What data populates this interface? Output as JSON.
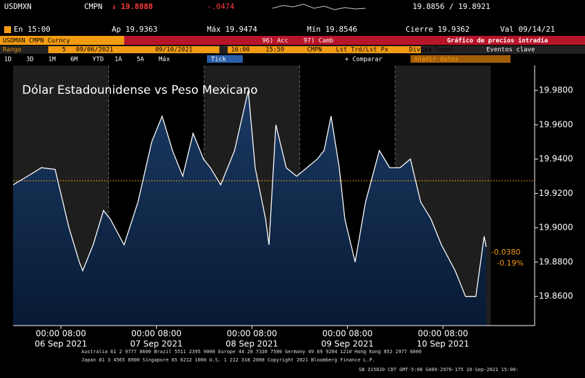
{
  "header": {
    "ticker": "USDMXN",
    "source": "CMPN",
    "last": "↓ 19.8888",
    "change": "-.0474",
    "bid_ask": "19.8856 / 19.8921",
    "time": "En 15:00",
    "open": "Ap 19.9363",
    "high": "Máx 19.9474",
    "low": "Mín 19.8546",
    "close": "Cierre 19.9362",
    "value_date": "Val 09/14/21",
    "security": "USDMXN CMPN Curncy",
    "menu_acc": "96) Acc",
    "menu_camb": "97) Camb",
    "chart_name": "Gráfico de precios intradía",
    "range_label": "Rango",
    "range_days": "5",
    "start_date": "09/06/2021",
    "end_date": "09/10/2021",
    "start_time": "16:00",
    "end_time": "15:59",
    "pricing_source": "CMPN",
    "field": "Lst Trd/Lst Px",
    "currency": "Divisa local",
    "events": "Eventos clave",
    "ranges": [
      "1D",
      "3D",
      "1M",
      "6M",
      "YTD",
      "1A",
      "5A",
      "Máx"
    ],
    "tick_button": "Tick",
    "compare": "+ Comparar",
    "add_data": "Añadir datos"
  },
  "footer": [
    "Australia 61 2 9777 8600 Brazil 5511 2395 9000 Europe 44 20 7330 7500 Germany 49 69 9204 1210 Hong Kong 852 2977 6000",
    "Japan 81 3 4565 8900      Singapore 65 6212 1000      U.S. 1 212 318 2000      Copyright 2021 Bloomberg Finance L.P.",
    "SN 315020 CDT  GMT-5:00 G409-2970-175 10-Sep-2021 15:00:"
  ],
  "chart_data": {
    "type": "area",
    "title": "Dólar Estadounidense vs Peso Mexicano",
    "x": [
      0,
      0.152,
      0.296,
      0.44,
      0.585,
      0.693,
      0.729,
      0.838,
      0.946,
      1.018,
      1.162,
      1.307,
      1.451,
      1.56,
      1.668,
      1.776,
      1.884,
      1.993,
      2.065,
      2.173,
      2.318,
      2.462,
      2.534,
      2.643,
      2.679,
      2.751,
      2.859,
      2.968,
      3.076,
      3.184,
      3.256,
      3.329,
      3.415,
      3.473,
      3.581,
      3.69,
      3.834,
      3.942,
      4.051,
      4.159,
      4.267,
      4.375,
      4.484,
      4.628,
      4.736,
      4.845,
      4.931,
      4.953
    ],
    "values": [
      19.925,
      19.93,
      19.935,
      19.934,
      19.9,
      19.88,
      19.875,
      19.89,
      19.91,
      19.905,
      19.89,
      19.915,
      19.95,
      19.965,
      19.945,
      19.93,
      19.955,
      19.94,
      19.935,
      19.925,
      19.945,
      19.98,
      19.935,
      19.905,
      19.89,
      19.96,
      19.935,
      19.93,
      19.935,
      19.94,
      19.945,
      19.965,
      19.935,
      19.905,
      19.88,
      19.915,
      19.945,
      19.935,
      19.935,
      19.94,
      19.915,
      19.905,
      19.89,
      19.875,
      19.86,
      19.86,
      19.895,
      19.8888
    ],
    "color": "#ffffff",
    "fill": "#1c3a64",
    "xlim": [
      0,
      5.46
    ],
    "ylim": [
      19.843,
      19.9945
    ],
    "xticks": [
      {
        "value": 0.5,
        "label": "00:00 08:00"
      },
      {
        "value": 1.5,
        "label": "00:00 08:00"
      },
      {
        "value": 2.5,
        "label": "00:00 08:00"
      },
      {
        "value": 3.5,
        "label": "00:00 08:00"
      },
      {
        "value": 4.5,
        "label": "00:00 08:00"
      }
    ],
    "xtick_dates": [
      "06 Sep 2021",
      "07 Sep 2021",
      "08 Sep 2021",
      "09 Sep 2021",
      "10 Sep 2021"
    ],
    "yticks": [
      {
        "value": 19.86,
        "label": "19.8600"
      },
      {
        "value": 19.88,
        "label": "19.8800"
      },
      {
        "value": 19.9,
        "label": "19.9000"
      },
      {
        "value": 19.92,
        "label": "19.9200"
      },
      {
        "value": 19.94,
        "label": "19.9400"
      },
      {
        "value": 19.96,
        "label": "19.9600"
      },
      {
        "value": 19.98,
        "label": "19.9800"
      }
    ],
    "reference_line": 19.9274,
    "annotations": [
      "-0.0380",
      "-0.19%"
    ]
  }
}
